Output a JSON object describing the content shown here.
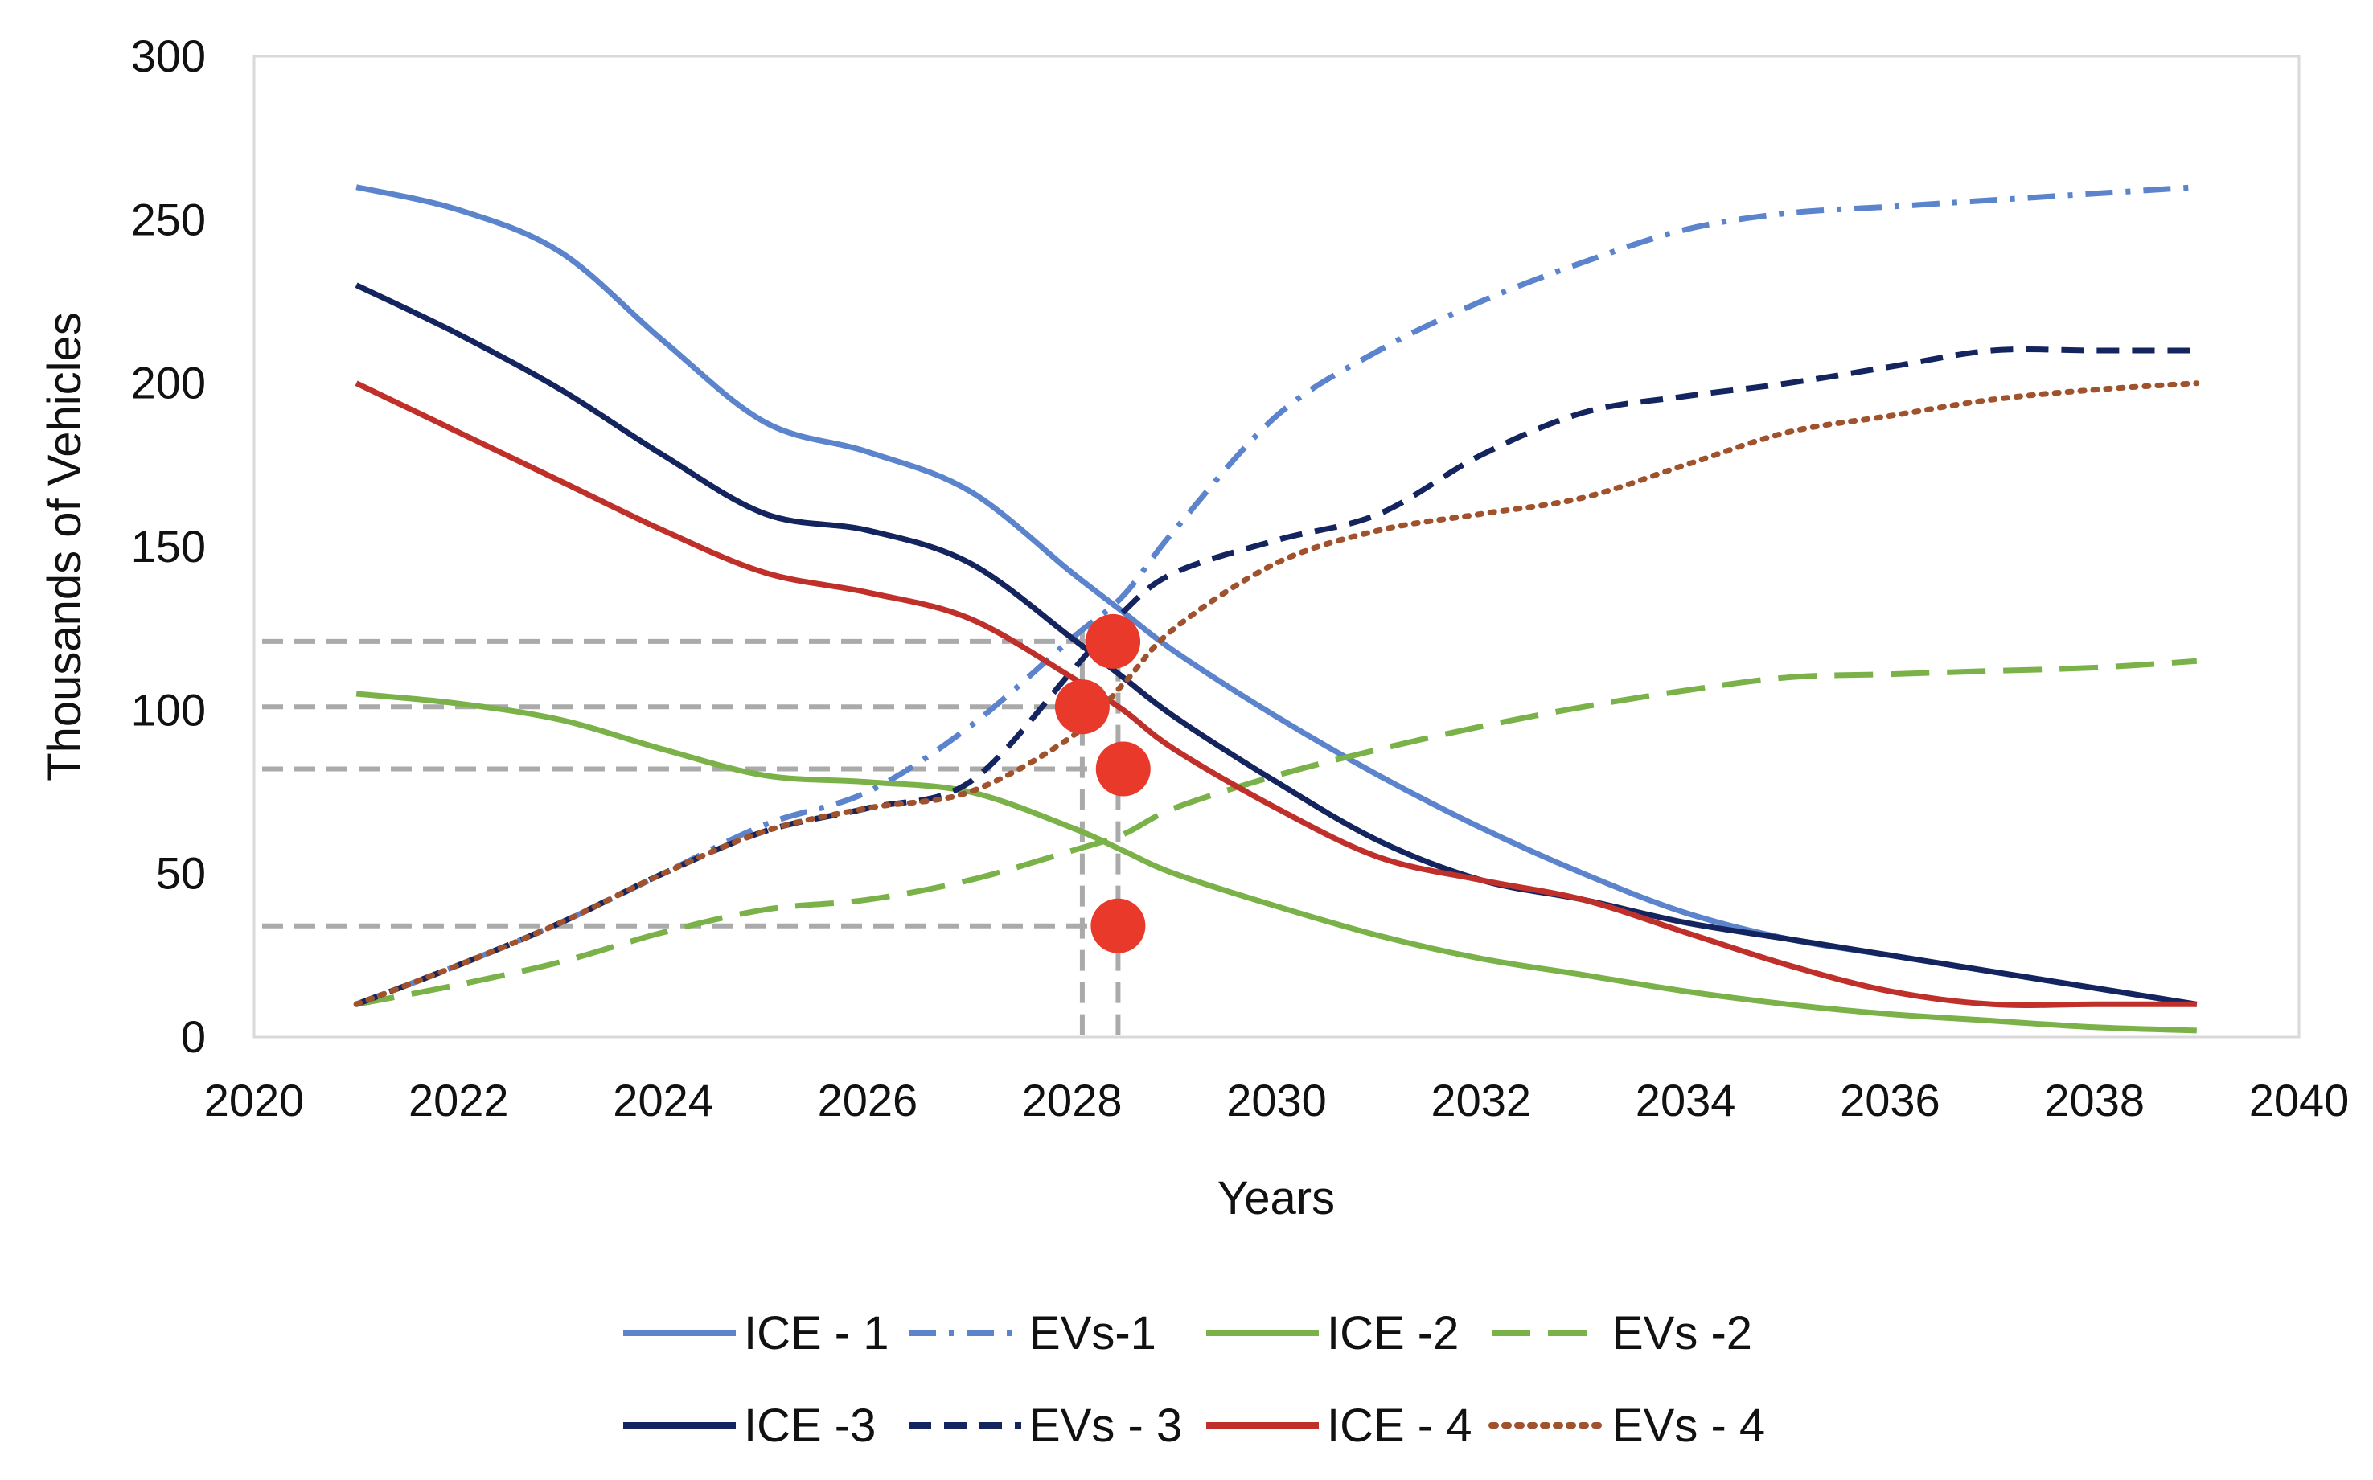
{
  "chart_data": {
    "type": "line",
    "title": "",
    "xlabel": "Years",
    "ylabel": "Thousands of Vehicles",
    "xlim": [
      2020,
      2040
    ],
    "ylim": [
      0,
      300
    ],
    "x_ticks": [
      "2020",
      "2022",
      "2024",
      "2026",
      "2028",
      "2030",
      "2032",
      "2034",
      "2036",
      "2038",
      "2040"
    ],
    "y_ticks": [
      "0",
      "50",
      "100",
      "150",
      "200",
      "250",
      "300"
    ],
    "grid": false,
    "legend_position": "bottom",
    "series": [
      {
        "name": "ICE - 1",
        "color": "#5b84cc",
        "style": "solid",
        "x": [
          2021,
          2022,
          2023,
          2024,
          2025,
          2026,
          2027,
          2028,
          2028.5,
          2029,
          2030,
          2031,
          2032,
          2033,
          2034,
          2035,
          2036,
          2037,
          2038,
          2039
        ],
        "values": [
          260,
          253,
          240,
          213,
          188,
          179,
          167,
          142,
          130,
          118,
          98,
          80,
          64,
          50,
          38,
          30,
          25,
          20,
          15,
          10
        ]
      },
      {
        "name": "EVs-1",
        "color": "#5b84cc",
        "style": "dashdot",
        "x": [
          2021,
          2022,
          2023,
          2024,
          2025,
          2026,
          2027,
          2028,
          2028.5,
          2029,
          2030,
          2031,
          2032,
          2033,
          2034,
          2035,
          2036,
          2037,
          2038,
          2039
        ],
        "values": [
          10,
          22,
          35,
          50,
          65,
          75,
          95,
          122,
          135,
          155,
          190,
          210,
          225,
          237,
          247,
          252,
          254,
          256,
          258,
          260
        ]
      },
      {
        "name": "ICE -2",
        "color": "#7ab148",
        "style": "solid",
        "x": [
          2021,
          2022,
          2023,
          2024,
          2025,
          2026,
          2027,
          2028,
          2028.5,
          2029,
          2030,
          2031,
          2032,
          2033,
          2034,
          2035,
          2036,
          2037,
          2038,
          2039
        ],
        "values": [
          105,
          102,
          97,
          88,
          80,
          78,
          75,
          64,
          57,
          50,
          40,
          31,
          24,
          19,
          14,
          10,
          7,
          5,
          3,
          2
        ]
      },
      {
        "name": "EVs -2",
        "color": "#7ab148",
        "style": "longdash",
        "x": [
          2021,
          2022,
          2023,
          2024,
          2025,
          2026,
          2027,
          2028,
          2028.5,
          2029,
          2030,
          2031,
          2032,
          2033,
          2034,
          2035,
          2036,
          2037,
          2038,
          2039
        ],
        "values": [
          10,
          16,
          23,
          32,
          39,
          42,
          48,
          57,
          62,
          70,
          80,
          88,
          95,
          101,
          106,
          110,
          111,
          112,
          113,
          115
        ]
      },
      {
        "name": "ICE -3",
        "color": "#14245e",
        "style": "solid",
        "x": [
          2021,
          2022,
          2023,
          2024,
          2025,
          2026,
          2027,
          2028,
          2028.5,
          2029,
          2030,
          2031,
          2032,
          2033,
          2034,
          2035,
          2036,
          2037,
          2038,
          2039
        ],
        "values": [
          230,
          215,
          198,
          178,
          160,
          155,
          145,
          122,
          110,
          98,
          78,
          60,
          48,
          42,
          35,
          30,
          25,
          20,
          15,
          10
        ]
      },
      {
        "name": "EVs - 3",
        "color": "#14245e",
        "style": "dashed",
        "x": [
          2021,
          2022,
          2023,
          2024,
          2025,
          2026,
          2027,
          2028,
          2028.5,
          2029,
          2030,
          2031,
          2032,
          2033,
          2034,
          2035,
          2036,
          2037,
          2038,
          2039
        ],
        "values": [
          10,
          22,
          35,
          50,
          63,
          70,
          78,
          112,
          130,
          142,
          152,
          160,
          178,
          191,
          196,
          200,
          205,
          210,
          210,
          210
        ]
      },
      {
        "name": "ICE - 4",
        "color": "#c0302b",
        "style": "solid",
        "x": [
          2021,
          2022,
          2023,
          2024,
          2025,
          2026,
          2027,
          2028,
          2028.5,
          2029,
          2030,
          2031,
          2032,
          2033,
          2034,
          2035,
          2036,
          2037,
          2038,
          2039
        ],
        "values": [
          200,
          185,
          170,
          155,
          142,
          136,
          128,
          110,
          100,
          88,
          70,
          55,
          48,
          42,
          32,
          22,
          14,
          10,
          10,
          10
        ]
      },
      {
        "name": "EVs - 4",
        "color": "#a0522d",
        "style": "dotted",
        "x": [
          2021,
          2022,
          2023,
          2024,
          2025,
          2026,
          2027,
          2028,
          2028.5,
          2029,
          2030,
          2031,
          2032,
          2033,
          2034,
          2035,
          2036,
          2037,
          2038,
          2039
        ],
        "values": [
          10,
          22,
          35,
          50,
          63,
          70,
          75,
          92,
          108,
          125,
          145,
          155,
          160,
          165,
          175,
          185,
          190,
          195,
          198,
          200
        ]
      }
    ],
    "annotations": {
      "markers": [
        {
          "x": 2028.4,
          "y": 121
        },
        {
          "x": 2028.1,
          "y": 101
        },
        {
          "x": 2028.5,
          "y": 82
        },
        {
          "x": 2028.45,
          "y": 34
        }
      ],
      "marker_color": "#e8392b",
      "guide_color": "#aaaaaa",
      "h_guides": [
        {
          "y": 121,
          "x_end": 2028.4
        },
        {
          "y": 101,
          "x_end": 2028.1
        },
        {
          "y": 82,
          "x_end": 2028.5
        },
        {
          "y": 34,
          "x_end": 2028.45
        }
      ],
      "v_guides": [
        2028.1,
        2028.45
      ]
    }
  }
}
